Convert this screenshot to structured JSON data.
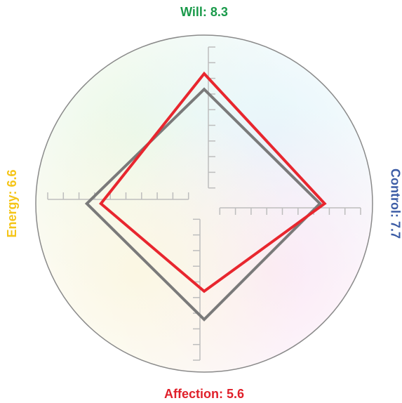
{
  "chart_data": {
    "type": "radar",
    "axis_labels": [
      "Will: 8.3",
      "Control: 7.7",
      "Affection: 5.6",
      "Energy: 6.6"
    ],
    "axis_colors": [
      "#1a9a4a",
      "#3b5ba5",
      "#e0202a",
      "#f5c518"
    ],
    "series": [
      {
        "color": "#7a7a7a",
        "values": [
          7.3,
          7.4,
          7.4,
          7.5
        ]
      },
      {
        "color": "#e8262e",
        "values": [
          8.3,
          7.7,
          5.6,
          6.6
        ]
      }
    ],
    "rlim": [
      0,
      10
    ],
    "rticks": [
      1,
      2,
      3,
      4,
      5,
      6,
      7,
      8,
      9,
      10
    ]
  }
}
